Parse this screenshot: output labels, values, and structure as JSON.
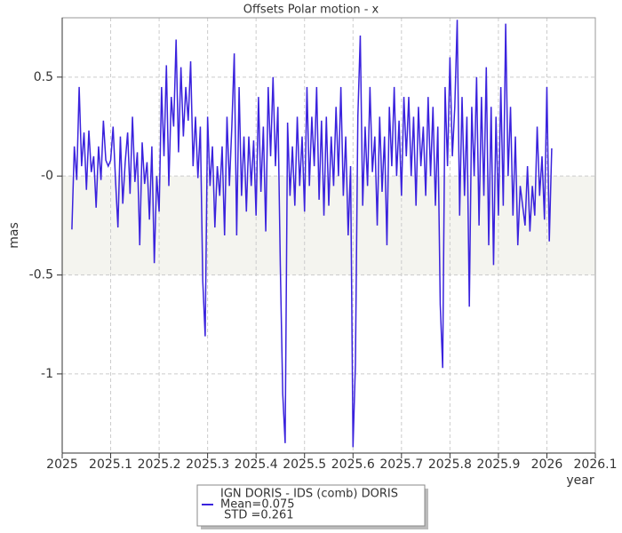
{
  "chart_data": {
    "type": "line",
    "title": "Offsets Polar motion - x",
    "xlabel": "year",
    "ylabel": "mas",
    "xlim": [
      2025,
      2026.1
    ],
    "xticks": [
      2025,
      2025.1,
      2025.2,
      2025.3,
      2025.4,
      2025.5,
      2025.6,
      2025.7,
      2025.8,
      2025.9,
      2026,
      2026.1
    ],
    "ylim": [
      -1.4,
      0.8
    ],
    "yticks": [
      {
        "value": 0.5,
        "label": "0.5"
      },
      {
        "value": 0,
        "label": "-0"
      },
      {
        "value": -0.5,
        "label": "-0.5"
      },
      {
        "value": -1,
        "label": "-1"
      }
    ],
    "grid": true,
    "band": [
      -0.5,
      0
    ],
    "legend": {
      "title": "IGN DORIS  - IDS (comb) DORIS",
      "lines": [
        "Mean=0.075",
        " STD =0.261"
      ]
    },
    "series": [
      {
        "name": "IGN DORIS  - IDS (comb) DORIS",
        "color": "#3a22dd",
        "x": [
          2025.02,
          2025.025,
          2025.03,
          2025.035,
          2025.04,
          2025.045,
          2025.05,
          2025.055,
          2025.06,
          2025.065,
          2025.07,
          2025.075,
          2025.08,
          2025.085,
          2025.09,
          2025.095,
          2025.1,
          2025.105,
          2025.11,
          2025.115,
          2025.12,
          2025.125,
          2025.13,
          2025.135,
          2025.14,
          2025.145,
          2025.15,
          2025.155,
          2025.16,
          2025.165,
          2025.17,
          2025.175,
          2025.18,
          2025.185,
          2025.19,
          2025.195,
          2025.2,
          2025.205,
          2025.21,
          2025.215,
          2025.22,
          2025.225,
          2025.23,
          2025.235,
          2025.24,
          2025.245,
          2025.25,
          2025.255,
          2025.26,
          2025.265,
          2025.27,
          2025.275,
          2025.28,
          2025.285,
          2025.29,
          2025.295,
          2025.3,
          2025.305,
          2025.31,
          2025.315,
          2025.32,
          2025.325,
          2025.33,
          2025.335,
          2025.34,
          2025.345,
          2025.35,
          2025.355,
          2025.36,
          2025.365,
          2025.37,
          2025.375,
          2025.38,
          2025.385,
          2025.39,
          2025.395,
          2025.4,
          2025.405,
          2025.41,
          2025.415,
          2025.42,
          2025.425,
          2025.43,
          2025.435,
          2025.44,
          2025.445,
          2025.45,
          2025.455,
          2025.46,
          2025.465,
          2025.47,
          2025.475,
          2025.48,
          2025.485,
          2025.49,
          2025.495,
          2025.5,
          2025.505,
          2025.51,
          2025.515,
          2025.52,
          2025.525,
          2025.53,
          2025.535,
          2025.54,
          2025.545,
          2025.55,
          2025.555,
          2025.56,
          2025.565,
          2025.57,
          2025.575,
          2025.58,
          2025.585,
          2025.59,
          2025.595,
          2025.6,
          2025.605,
          2025.61,
          2025.615,
          2025.62,
          2025.625,
          2025.63,
          2025.635,
          2025.64,
          2025.645,
          2025.65,
          2025.655,
          2025.66,
          2025.665,
          2025.67,
          2025.675,
          2025.68,
          2025.685,
          2025.69,
          2025.695,
          2025.7,
          2025.705,
          2025.71,
          2025.715,
          2025.72,
          2025.725,
          2025.73,
          2025.735,
          2025.74,
          2025.745,
          2025.75,
          2025.755,
          2025.76,
          2025.765,
          2025.77,
          2025.775,
          2025.78,
          2025.785,
          2025.79,
          2025.795,
          2025.8,
          2025.805,
          2025.81,
          2025.815,
          2025.82,
          2025.825,
          2025.83,
          2025.835,
          2025.84,
          2025.845,
          2025.85,
          2025.855,
          2025.86,
          2025.865,
          2025.87,
          2025.875,
          2025.88,
          2025.885,
          2025.89,
          2025.895,
          2025.9,
          2025.905,
          2025.91,
          2025.915,
          2025.92,
          2025.925,
          2025.93,
          2025.935,
          2025.94,
          2025.945,
          2025.95,
          2025.955,
          2025.96,
          2025.965,
          2025.97,
          2025.975,
          2025.98,
          2025.985,
          2025.99,
          2025.995,
          2026.0,
          2026.005,
          2026.01
        ],
        "values": [
          -0.27,
          0.15,
          -0.02,
          0.45,
          0.05,
          0.22,
          -0.07,
          0.23,
          0.02,
          0.1,
          -0.16,
          0.15,
          -0.02,
          0.28,
          0.08,
          0.05,
          0.08,
          0.25,
          -0.02,
          -0.26,
          0.2,
          -0.14,
          0.07,
          0.22,
          -0.09,
          0.3,
          -0.03,
          0.12,
          -0.35,
          0.17,
          -0.04,
          0.07,
          -0.22,
          0.15,
          -0.44,
          0.0,
          -0.18,
          0.45,
          0.1,
          0.56,
          -0.05,
          0.4,
          0.25,
          0.69,
          0.12,
          0.55,
          0.2,
          0.45,
          0.28,
          0.58,
          0.05,
          0.3,
          -0.01,
          0.25,
          -0.53,
          -0.81,
          0.3,
          -0.05,
          0.15,
          -0.26,
          0.05,
          -0.1,
          0.15,
          -0.3,
          0.3,
          -0.05,
          0.25,
          0.62,
          -0.3,
          0.45,
          -0.1,
          0.2,
          -0.18,
          0.2,
          -0.05,
          0.18,
          -0.2,
          0.4,
          -0.08,
          0.25,
          -0.28,
          0.45,
          0.1,
          0.5,
          0.05,
          0.35,
          -0.45,
          -1.1,
          -1.35,
          0.27,
          -0.1,
          0.15,
          -0.15,
          0.3,
          -0.05,
          0.2,
          -0.18,
          0.45,
          -0.05,
          0.3,
          0.05,
          0.45,
          -0.12,
          0.28,
          -0.2,
          0.3,
          -0.15,
          0.2,
          -0.05,
          0.35,
          0.0,
          0.45,
          -0.1,
          0.2,
          -0.3,
          0.05,
          -1.37,
          -0.95,
          0.3,
          0.71,
          -0.15,
          0.25,
          -0.05,
          0.45,
          0.02,
          0.2,
          -0.25,
          0.3,
          -0.08,
          0.2,
          -0.35,
          0.35,
          0.05,
          0.45,
          0.0,
          0.28,
          -0.1,
          0.4,
          0.1,
          0.4,
          0.0,
          0.3,
          -0.15,
          0.35,
          0.05,
          0.25,
          -0.1,
          0.4,
          0.0,
          0.35,
          -0.15,
          0.25,
          -0.65,
          -0.97,
          0.45,
          0.05,
          0.6,
          0.1,
          0.35,
          0.79,
          -0.2,
          0.4,
          -0.1,
          0.3,
          -0.66,
          0.35,
          0.0,
          0.5,
          -0.25,
          0.4,
          -0.1,
          0.55,
          -0.35,
          0.35,
          -0.45,
          0.3,
          -0.2,
          0.45,
          -0.15,
          0.77,
          0.0,
          0.35,
          -0.2,
          0.2,
          -0.35,
          -0.05,
          -0.15,
          -0.25,
          0.05,
          -0.28,
          -0.05,
          -0.2,
          0.25,
          -0.1,
          0.1,
          -0.22,
          0.45,
          -0.33,
          0.14
        ]
      }
    ]
  }
}
